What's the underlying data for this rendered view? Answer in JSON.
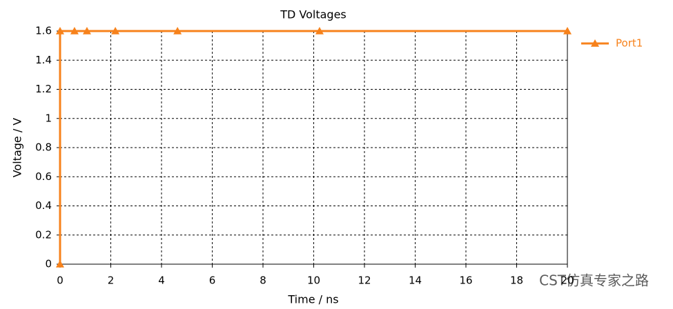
{
  "chart_data": {
    "type": "line",
    "title": "TD Voltages",
    "x_label": "Time / ns",
    "y_label": "Voltage / V",
    "x": [
      0,
      0,
      0.57,
      1.06,
      2.18,
      4.63,
      10.23,
      20
    ],
    "series": [
      {
        "name": "Port1",
        "color": "#f7821b",
        "values": [
          0,
          1.6,
          1.6,
          1.6,
          1.6,
          1.6,
          1.6,
          1.6
        ]
      }
    ],
    "xlim": [
      0,
      20
    ],
    "xticks": [
      0,
      2,
      4,
      6,
      8,
      10,
      12,
      14,
      16,
      18,
      20
    ],
    "ylim": [
      0,
      1.6
    ],
    "yticks": [
      0,
      0.2,
      0.4,
      0.6,
      0.8,
      1,
      1.2,
      1.4,
      1.6
    ],
    "grid": true,
    "legend": "right",
    "watermark": "CST仿真专家之路"
  }
}
